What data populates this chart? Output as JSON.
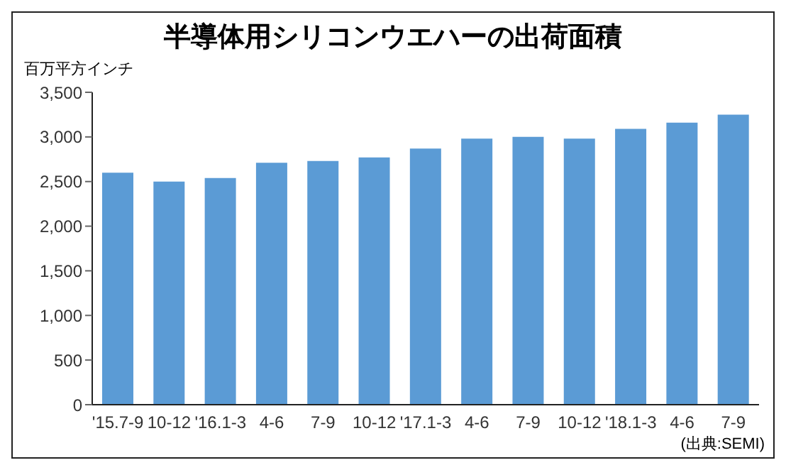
{
  "chart_data": {
    "type": "bar",
    "title": "半導体用シリコンウエハーの出荷面積",
    "ylabel": "百万平方インチ",
    "categories": [
      "'15.7-9",
      "10-12",
      "'16.1-3",
      "4-6",
      "7-9",
      "10-12",
      "'17.1-3",
      "4-6",
      "7-9",
      "10-12",
      "'18.1-3",
      "4-6",
      "7-9"
    ],
    "values": [
      2600,
      2500,
      2540,
      2710,
      2730,
      2770,
      2870,
      2980,
      3000,
      2980,
      3090,
      3160,
      3250
    ],
    "color": "#5b9bd5",
    "ylim": [
      0,
      3500
    ],
    "yticks": [
      0,
      500,
      {
        "value": 1000,
        "label": "1,000"
      },
      {
        "value": 1500,
        "label": "1,500"
      },
      {
        "value": 2000,
        "label": "2,000"
      },
      {
        "value": 2500,
        "label": "2,500"
      },
      {
        "value": 3000,
        "label": "3,000"
      },
      {
        "value": 3500,
        "label": "3,500"
      }
    ],
    "grid": false,
    "annotations": [
      "(出典:SEMI)"
    ]
  }
}
